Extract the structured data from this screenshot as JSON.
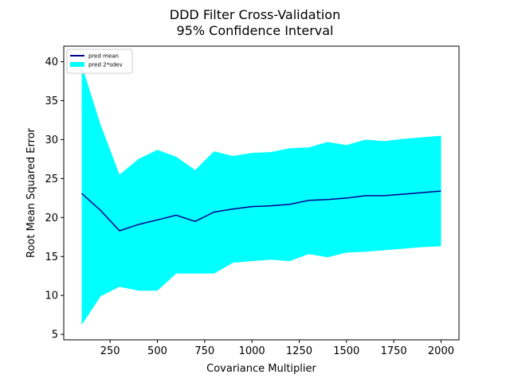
{
  "chart_data": {
    "type": "line",
    "title": "DDD Filter Cross-Validation",
    "subtitle": "95% Confidence Interval",
    "xlabel": "Covariance Multiplier",
    "ylabel": "Root Mean Squared Error",
    "xlim": [
      5,
      2095
    ],
    "ylim": [
      4.3,
      42.0
    ],
    "xticks": [
      250,
      500,
      750,
      1000,
      1250,
      1500,
      1750,
      2000
    ],
    "yticks": [
      5,
      10,
      15,
      20,
      25,
      30,
      35,
      40
    ],
    "grid": false,
    "legend_position": "top-left",
    "x": [
      100,
      200,
      300,
      400,
      500,
      600,
      700,
      800,
      900,
      1000,
      1100,
      1200,
      1300,
      1400,
      1500,
      1600,
      1700,
      1800,
      1900,
      2000
    ],
    "series": [
      {
        "name": "pred mean",
        "kind": "line",
        "color": "#00008b",
        "values": [
          23.1,
          20.9,
          18.3,
          19.1,
          19.7,
          20.3,
          19.5,
          20.7,
          21.1,
          21.4,
          21.5,
          21.7,
          22.2,
          22.3,
          22.5,
          22.8,
          22.8,
          23.0,
          23.2,
          23.4
        ]
      },
      {
        "name": "pred 2*sdev",
        "kind": "band",
        "color": "#00ffff",
        "upper": [
          39.6,
          31.9,
          25.5,
          27.5,
          28.7,
          27.8,
          26.1,
          28.5,
          27.9,
          28.3,
          28.4,
          28.9,
          29.0,
          29.7,
          29.3,
          30.0,
          29.8,
          30.1,
          30.3,
          30.5
        ],
        "lower": [
          6.2,
          9.9,
          11.1,
          10.6,
          10.6,
          12.8,
          12.8,
          12.8,
          14.2,
          14.4,
          14.6,
          14.4,
          15.3,
          14.9,
          15.5,
          15.6,
          15.8,
          16.0,
          16.2,
          16.3
        ]
      }
    ]
  }
}
